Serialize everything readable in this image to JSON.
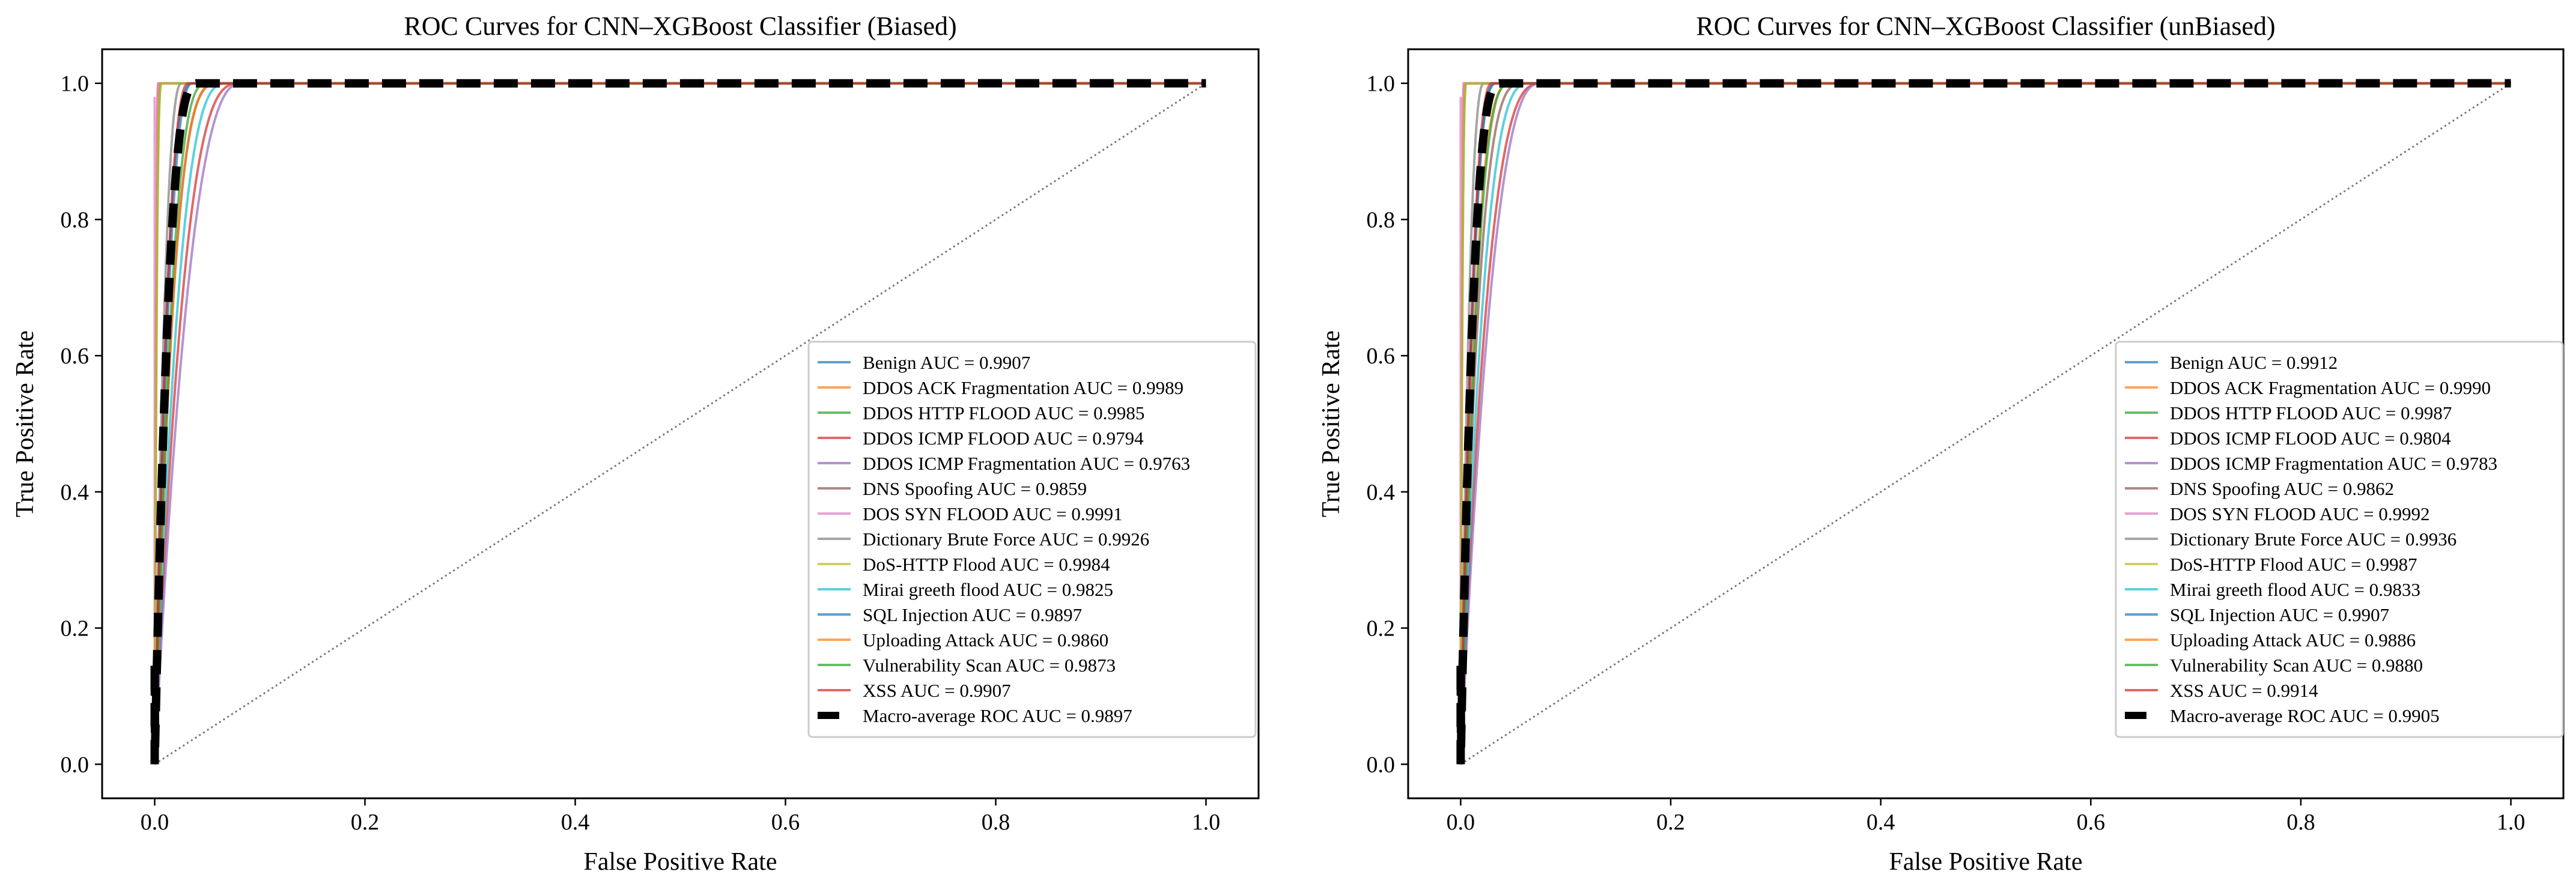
{
  "chart_data": [
    {
      "type": "line",
      "title": "ROC Curves for CNN–XGBoost Classifier (Biased)",
      "xlabel": "False Positive Rate",
      "ylabel": "True Positive Rate",
      "xlim": [
        -0.05,
        1.05
      ],
      "ylim": [
        -0.05,
        1.05
      ],
      "xticks": [
        "0.0",
        "0.2",
        "0.4",
        "0.6",
        "0.8",
        "1.0"
      ],
      "yticks": [
        "0.0",
        "0.2",
        "0.4",
        "0.6",
        "0.8",
        "1.0"
      ],
      "grid": false,
      "legend_position": "lower-right",
      "diagonal": "dotted gray chance line",
      "series": [
        {
          "name": "Benign AUC = 0.9907",
          "auc": 0.9907,
          "color": "#1f77b4"
        },
        {
          "name": "DDOS ACK Fragmentation AUC = 0.9989",
          "auc": 0.9989,
          "color": "#ff7f0e"
        },
        {
          "name": "DDOS HTTP FLOOD AUC = 0.9985",
          "auc": 0.9985,
          "color": "#2ca02c"
        },
        {
          "name": "DDOS ICMP FLOOD AUC = 0.9794",
          "auc": 0.9794,
          "color": "#d62728"
        },
        {
          "name": "DDOS ICMP Fragmentation AUC = 0.9763",
          "auc": 0.9763,
          "color": "#9467bd"
        },
        {
          "name": "DNS Spoofing AUC = 0.9859",
          "auc": 0.9859,
          "color": "#8c564b"
        },
        {
          "name": "DOS SYN FLOOD AUC = 0.9991",
          "auc": 0.9991,
          "color": "#e377c2"
        },
        {
          "name": "Dictionary Brute Force AUC = 0.9926",
          "auc": 0.9926,
          "color": "#7f7f7f"
        },
        {
          "name": "DoS-HTTP Flood AUC = 0.9984",
          "auc": 0.9984,
          "color": "#bcbd22"
        },
        {
          "name": "Mirai greeth flood AUC = 0.9825",
          "auc": 0.9825,
          "color": "#17becf"
        },
        {
          "name": "SQL Injection AUC = 0.9897",
          "auc": 0.9897,
          "color": "#1f77b4"
        },
        {
          "name": "Uploading Attack AUC = 0.9860",
          "auc": 0.986,
          "color": "#ff7f0e"
        },
        {
          "name": "Vulnerability Scan AUC = 0.9873",
          "auc": 0.9873,
          "color": "#2ca02c"
        },
        {
          "name": "XSS AUC = 0.9907",
          "auc": 0.9907,
          "color": "#d62728"
        },
        {
          "name": "Macro-average ROC AUC = 0.9897",
          "auc": 0.9897,
          "color": "#000000",
          "dashed": true
        }
      ]
    },
    {
      "type": "line",
      "title": "ROC Curves for CNN–XGBoost Classifier (unBiased)",
      "xlabel": "False Positive Rate",
      "ylabel": "True Positive Rate",
      "xlim": [
        -0.05,
        1.05
      ],
      "ylim": [
        -0.05,
        1.05
      ],
      "xticks": [
        "0.0",
        "0.2",
        "0.4",
        "0.6",
        "0.8",
        "1.0"
      ],
      "yticks": [
        "0.0",
        "0.2",
        "0.4",
        "0.6",
        "0.8",
        "1.0"
      ],
      "grid": false,
      "legend_position": "lower-right",
      "diagonal": "dotted gray chance line",
      "series": [
        {
          "name": "Benign AUC = 0.9912",
          "auc": 0.9912,
          "color": "#1f77b4"
        },
        {
          "name": "DDOS ACK Fragmentation AUC = 0.9990",
          "auc": 0.999,
          "color": "#ff7f0e"
        },
        {
          "name": "DDOS HTTP FLOOD AUC = 0.9987",
          "auc": 0.9987,
          "color": "#2ca02c"
        },
        {
          "name": "DDOS ICMP FLOOD AUC = 0.9804",
          "auc": 0.9804,
          "color": "#d62728"
        },
        {
          "name": "DDOS ICMP Fragmentation AUC = 0.9783",
          "auc": 0.9783,
          "color": "#9467bd"
        },
        {
          "name": "DNS Spoofing AUC = 0.9862",
          "auc": 0.9862,
          "color": "#8c564b"
        },
        {
          "name": "DOS SYN FLOOD AUC = 0.9992",
          "auc": 0.9992,
          "color": "#e377c2"
        },
        {
          "name": "Dictionary Brute Force AUC = 0.9936",
          "auc": 0.9936,
          "color": "#7f7f7f"
        },
        {
          "name": "DoS-HTTP Flood AUC = 0.9987",
          "auc": 0.9987,
          "color": "#bcbd22"
        },
        {
          "name": "Mirai greeth flood AUC = 0.9833",
          "auc": 0.9833,
          "color": "#17becf"
        },
        {
          "name": "SQL Injection AUC = 0.9907",
          "auc": 0.9907,
          "color": "#1f77b4"
        },
        {
          "name": "Uploading Attack AUC = 0.9886",
          "auc": 0.9886,
          "color": "#ff7f0e"
        },
        {
          "name": "Vulnerability Scan AUC = 0.9880",
          "auc": 0.988,
          "color": "#2ca02c"
        },
        {
          "name": "XSS AUC = 0.9914",
          "auc": 0.9914,
          "color": "#d62728"
        },
        {
          "name": "Macro-average ROC AUC = 0.9905",
          "auc": 0.9905,
          "color": "#000000",
          "dashed": true
        }
      ]
    }
  ]
}
